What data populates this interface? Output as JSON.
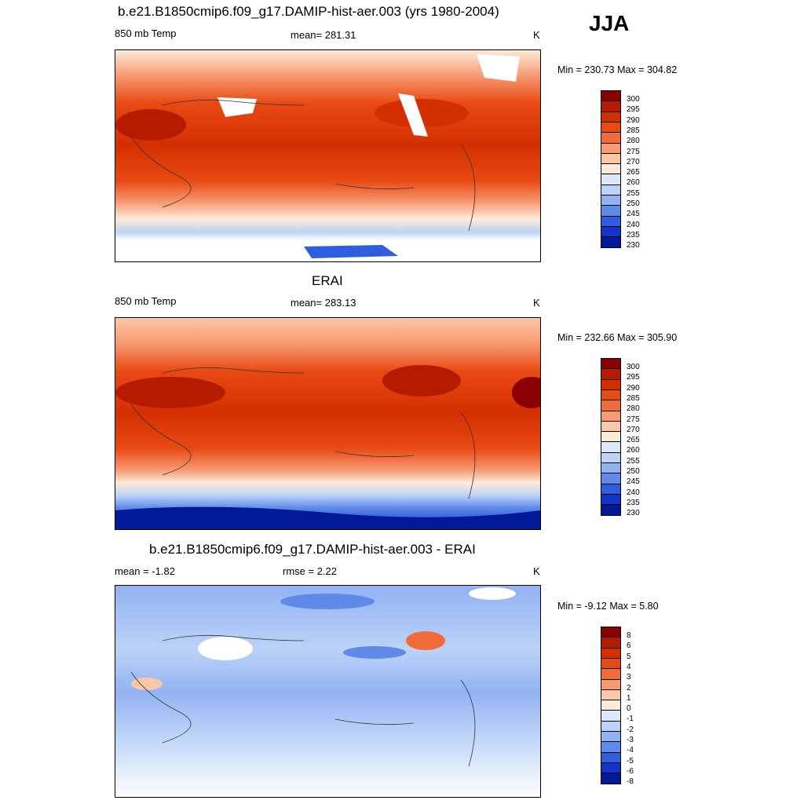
{
  "season": "JJA",
  "panels": [
    {
      "title": "b.e21.B1850cmip6.f09_g17.DAMIP-hist-aer.003 (yrs 1980-2004)",
      "left_label": "850 mb Temp",
      "center_label": "mean= 281.31",
      "right_label": "K",
      "minmax": "Min = 230.73 Max = 304.82",
      "colorbar": {
        "labels": [
          "300",
          "295",
          "290",
          "285",
          "280",
          "275",
          "270",
          "265",
          "260",
          "255",
          "250",
          "245",
          "240",
          "235",
          "230"
        ],
        "colors": [
          "#8b0000",
          "#b51b00",
          "#d42f00",
          "#e84a14",
          "#f26b3a",
          "#f79a72",
          "#fbc7a7",
          "#fdebd9",
          "#dde9fb",
          "#bcd3f7",
          "#92b2f2",
          "#5f8ae9",
          "#2f5fe0",
          "#1234c8",
          "#001a9a"
        ]
      }
    },
    {
      "title": "ERAI",
      "left_label": "850 mb Temp",
      "center_label": "mean= 283.13",
      "right_label": "K",
      "minmax": "Min = 232.66 Max = 305.90",
      "colorbar": {
        "labels": [
          "300",
          "295",
          "290",
          "285",
          "280",
          "275",
          "270",
          "265",
          "260",
          "255",
          "250",
          "245",
          "240",
          "235",
          "230"
        ],
        "colors": [
          "#8b0000",
          "#b51b00",
          "#d42f00",
          "#e84a14",
          "#f26b3a",
          "#f79a72",
          "#fbc7a7",
          "#fdebd9",
          "#dde9fb",
          "#bcd3f7",
          "#92b2f2",
          "#5f8ae9",
          "#2f5fe0",
          "#1234c8",
          "#001a9a"
        ]
      }
    },
    {
      "title": "b.e21.B1850cmip6.f09_g17.DAMIP-hist-aer.003 - ERAI",
      "left_label": "mean =  -1.82",
      "center_label": "rmse =   2.22",
      "right_label": "K",
      "minmax": "Min =  -9.12 Max =   5.80",
      "colorbar": {
        "labels": [
          "8",
          "6",
          "5",
          "4",
          "3",
          "2",
          "1",
          "0",
          "-1",
          "-2",
          "-3",
          "-4",
          "-5",
          "-6",
          "-8"
        ],
        "colors": [
          "#8b0000",
          "#b51b00",
          "#d42f00",
          "#e84a14",
          "#f26b3a",
          "#f79a72",
          "#fbc7a7",
          "#fdebd9",
          "#dde9fb",
          "#bcd3f7",
          "#92b2f2",
          "#5f8ae9",
          "#2f5fe0",
          "#1234c8",
          "#001a9a"
        ]
      }
    }
  ],
  "chart_data": [
    {
      "type": "heatmap",
      "title": "b.e21.B1850cmip6.f09_g17.DAMIP-hist-aer.003 (yrs 1980-2004)",
      "variable": "850 mb Temp",
      "units": "K",
      "mean": 281.31,
      "min": 230.73,
      "max": 304.82,
      "levels": [
        230,
        235,
        240,
        245,
        250,
        255,
        260,
        265,
        270,
        275,
        280,
        285,
        290,
        295,
        300
      ]
    },
    {
      "type": "heatmap",
      "title": "ERAI",
      "variable": "850 mb Temp",
      "units": "K",
      "mean": 283.13,
      "min": 232.66,
      "max": 305.9,
      "levels": [
        230,
        235,
        240,
        245,
        250,
        255,
        260,
        265,
        270,
        275,
        280,
        285,
        290,
        295,
        300
      ]
    },
    {
      "type": "heatmap",
      "title": "b.e21.B1850cmip6.f09_g17.DAMIP-hist-aer.003 - ERAI",
      "units": "K",
      "mean": -1.82,
      "rmse": 2.22,
      "min": -9.12,
      "max": 5.8,
      "levels": [
        -8,
        -6,
        -5,
        -4,
        -3,
        -2,
        -1,
        0,
        1,
        2,
        3,
        4,
        5,
        6,
        8
      ]
    }
  ]
}
